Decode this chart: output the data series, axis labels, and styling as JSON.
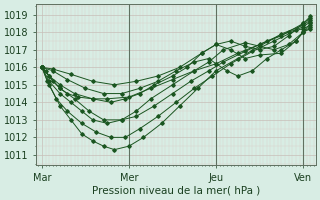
{
  "xlabel": "Pression niveau de la mer( hPa )",
  "bg_color": "#d8ede4",
  "grid_color_major": "#c8bfb8",
  "grid_color_minor": "#d8d0c8",
  "line_color": "#1a5520",
  "xtick_labels": [
    "Mar",
    "Mer",
    "Jeu",
    "Ven"
  ],
  "xtick_positions": [
    0,
    48,
    96,
    144
  ],
  "ytick_labels": [
    "1011",
    "1012",
    "1013",
    "1014",
    "1015",
    "1016",
    "1017",
    "1018",
    "1019"
  ],
  "ytick_positions": [
    1011,
    1012,
    1013,
    1014,
    1015,
    1016,
    1017,
    1018,
    1019
  ],
  "ylim": [
    1010.4,
    1019.6
  ],
  "xlim": [
    -3,
    151
  ],
  "vlines": [
    48,
    96,
    144
  ],
  "lines": [
    [
      0,
      1016.0,
      2,
      1015.8,
      6,
      1015.2,
      10,
      1014.8,
      14,
      1014.5,
      20,
      1014.3,
      28,
      1014.2,
      36,
      1014.2,
      48,
      1014.3,
      60,
      1014.8,
      72,
      1015.3,
      84,
      1015.8,
      96,
      1016.2,
      108,
      1016.8,
      120,
      1017.3,
      132,
      1017.8,
      144,
      1018.5,
      148,
      1018.8
    ],
    [
      0,
      1016.0,
      4,
      1015.5,
      10,
      1014.8,
      18,
      1014.2,
      26,
      1013.5,
      34,
      1013.0,
      44,
      1013.0,
      52,
      1013.2,
      62,
      1013.8,
      72,
      1014.5,
      82,
      1015.2,
      92,
      1015.8,
      100,
      1016.3,
      112,
      1016.9,
      124,
      1017.5,
      136,
      1018.0,
      144,
      1018.3,
      148,
      1018.6
    ],
    [
      0,
      1016.0,
      3,
      1015.2,
      8,
      1014.2,
      14,
      1013.5,
      22,
      1012.8,
      30,
      1012.3,
      38,
      1012.0,
      46,
      1012.0,
      54,
      1012.5,
      64,
      1013.2,
      74,
      1014.0,
      84,
      1014.8,
      94,
      1015.5,
      104,
      1016.2,
      116,
      1016.9,
      128,
      1017.5,
      140,
      1018.1,
      144,
      1018.2,
      148,
      1018.4
    ],
    [
      0,
      1016.0,
      4,
      1015.0,
      10,
      1013.8,
      16,
      1013.0,
      22,
      1012.2,
      28,
      1011.8,
      34,
      1011.5,
      40,
      1011.3,
      48,
      1011.5,
      56,
      1012.0,
      66,
      1012.8,
      76,
      1013.8,
      86,
      1014.8,
      96,
      1015.8,
      108,
      1016.5,
      120,
      1017.2,
      132,
      1017.9,
      144,
      1018.4,
      148,
      1018.7
    ],
    [
      0,
      1016.0,
      4,
      1015.2,
      10,
      1014.5,
      16,
      1014.0,
      22,
      1013.5,
      28,
      1013.0,
      36,
      1012.8,
      44,
      1013.0,
      52,
      1013.5,
      60,
      1014.2,
      72,
      1015.0,
      84,
      1015.8,
      92,
      1016.3,
      100,
      1017.0,
      112,
      1017.4,
      120,
      1017.2,
      128,
      1017.0,
      136,
      1017.3,
      144,
      1018.0,
      148,
      1018.3
    ],
    [
      0,
      1016.0,
      4,
      1015.5,
      10,
      1015.0,
      18,
      1014.5,
      28,
      1014.2,
      38,
      1014.0,
      46,
      1014.2,
      54,
      1014.5,
      62,
      1015.0,
      72,
      1015.5,
      80,
      1016.0,
      88,
      1016.8,
      96,
      1017.3,
      104,
      1017.0,
      112,
      1016.5,
      120,
      1016.7,
      132,
      1016.8,
      140,
      1017.5,
      144,
      1018.0,
      148,
      1018.2
    ],
    [
      0,
      1016.0,
      6,
      1015.8,
      14,
      1015.3,
      24,
      1014.8,
      34,
      1014.5,
      44,
      1014.5,
      54,
      1014.8,
      64,
      1015.2,
      74,
      1015.8,
      84,
      1016.3,
      92,
      1016.5,
      96,
      1016.2,
      102,
      1015.8,
      108,
      1015.5,
      116,
      1015.8,
      124,
      1016.5,
      132,
      1017.0,
      140,
      1017.5,
      144,
      1018.0,
      148,
      1018.5
    ],
    [
      0,
      1016.0,
      6,
      1015.9,
      16,
      1015.6,
      28,
      1015.2,
      40,
      1015.0,
      52,
      1015.2,
      64,
      1015.5,
      76,
      1016.0,
      88,
      1016.8,
      96,
      1017.3,
      104,
      1017.5,
      112,
      1017.2,
      120,
      1017.0,
      128,
      1017.2,
      136,
      1017.8,
      144,
      1018.5,
      148,
      1018.9
    ]
  ]
}
